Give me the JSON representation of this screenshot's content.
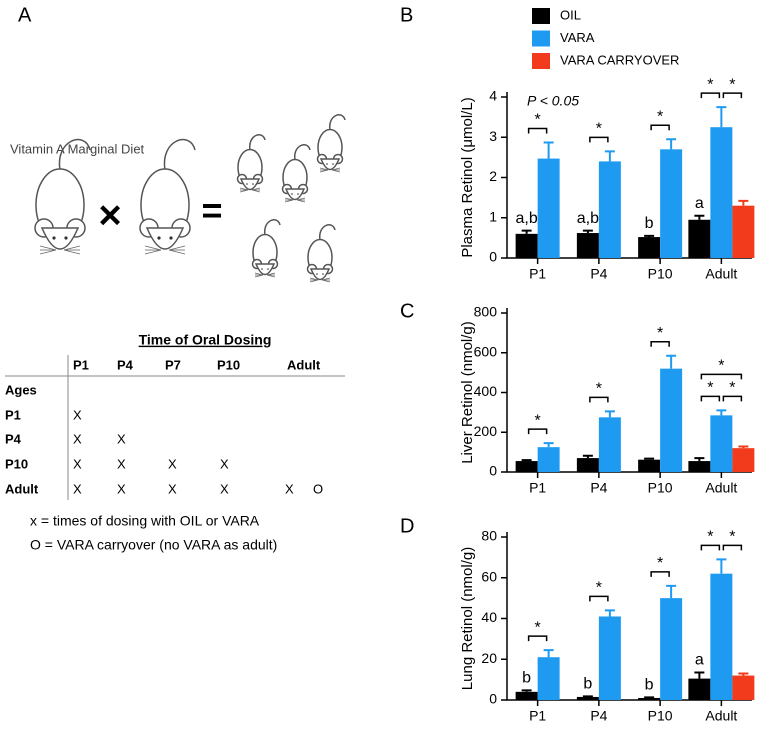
{
  "panel_a": {
    "label": "A",
    "diet": "Vitamin A Marginal Diet",
    "table": {
      "title": "Time of Oral Dosing",
      "columns": [
        "P1",
        "P4",
        "P7",
        "P10",
        "Adult"
      ],
      "row_header": "Ages",
      "rows": [
        {
          "label": "P1",
          "cells": [
            "X"
          ]
        },
        {
          "label": "P4",
          "cells": [
            "X",
            "X"
          ]
        },
        {
          "label": "P10",
          "cells": [
            "X",
            "X",
            "X",
            "X"
          ]
        },
        {
          "label": "Adult",
          "cells": [
            "X",
            "X",
            "X",
            "X",
            "X",
            "O"
          ]
        }
      ]
    },
    "notes": [
      "x = times of dosing with OIL or VARA",
      "O = VARA carryover (no VARA as adult)"
    ]
  },
  "legend": [
    {
      "name": "OIL",
      "color": "#000000"
    },
    {
      "name": "VARA",
      "color": "#1e9bf0"
    },
    {
      "name": "VARA CARRYOVER",
      "color": "#f23a1c"
    }
  ],
  "chart_data": [
    {
      "type": "bar",
      "panel": "B",
      "y_label": "Plasma Retinol (μmol/L)",
      "annotation": "P < 0.05",
      "categories": [
        "P1",
        "P4",
        "P10",
        "Adult"
      ],
      "ylim": [
        0,
        4
      ],
      "yticks": [
        0,
        1,
        2,
        3,
        4
      ],
      "series": [
        {
          "name": "OIL",
          "color": "#000000",
          "values": [
            0.6,
            0.62,
            0.52,
            0.95
          ],
          "errors": [
            0.08,
            0.06,
            0.03,
            0.1
          ],
          "letters": [
            "a,b",
            "a,b",
            "b",
            "a"
          ]
        },
        {
          "name": "VARA",
          "color": "#1e9bf0",
          "values": [
            2.47,
            2.4,
            2.7,
            3.25
          ],
          "errors": [
            0.4,
            0.25,
            0.25,
            0.5
          ]
        },
        {
          "name": "VARA CARRYOVER",
          "color": "#f23a1c",
          "values": [
            null,
            null,
            null,
            1.3
          ],
          "errors": [
            null,
            null,
            null,
            0.12
          ]
        }
      ],
      "significance": [
        {
          "category": 0,
          "series": [
            0,
            1
          ],
          "label": "*"
        },
        {
          "category": 1,
          "series": [
            0,
            1
          ],
          "label": "*"
        },
        {
          "category": 2,
          "series": [
            0,
            1
          ],
          "label": "*"
        },
        {
          "category": 3,
          "series": [
            0,
            1
          ],
          "label": "*"
        },
        {
          "category": 3,
          "series": [
            1,
            2
          ],
          "label": "*"
        }
      ]
    },
    {
      "type": "bar",
      "panel": "C",
      "y_label": "Liver Retinol (nmol/g)",
      "categories": [
        "P1",
        "P4",
        "P10",
        "Adult"
      ],
      "ylim": [
        0,
        800
      ],
      "yticks": [
        0,
        200,
        400,
        600,
        800
      ],
      "series": [
        {
          "name": "OIL",
          "color": "#000000",
          "values": [
            55,
            70,
            62,
            55
          ],
          "errors": [
            5,
            12,
            5,
            15
          ]
        },
        {
          "name": "VARA",
          "color": "#1e9bf0",
          "values": [
            125,
            275,
            520,
            285
          ],
          "errors": [
            20,
            30,
            65,
            25
          ]
        },
        {
          "name": "VARA CARRYOVER",
          "color": "#f23a1c",
          "values": [
            null,
            null,
            null,
            120
          ],
          "errors": [
            null,
            null,
            null,
            8
          ]
        }
      ],
      "significance": [
        {
          "category": 0,
          "series": [
            0,
            1
          ],
          "label": "*"
        },
        {
          "category": 1,
          "series": [
            0,
            1
          ],
          "label": "*"
        },
        {
          "category": 2,
          "series": [
            0,
            1
          ],
          "label": "*"
        },
        {
          "category": 3,
          "series": [
            0,
            1
          ],
          "label": "*"
        },
        {
          "category": 3,
          "series": [
            1,
            2
          ],
          "label": "*"
        },
        {
          "category": 3,
          "series": [
            0,
            2
          ],
          "label": "*"
        }
      ]
    },
    {
      "type": "bar",
      "panel": "D",
      "y_label": "Lung Retinol (nmol/g)",
      "categories": [
        "P1",
        "P4",
        "P10",
        "Adult"
      ],
      "ylim": [
        0,
        80
      ],
      "yticks": [
        0,
        20,
        40,
        60,
        80
      ],
      "series": [
        {
          "name": "OIL",
          "color": "#000000",
          "values": [
            4,
            1.5,
            1,
            10.5
          ],
          "errors": [
            0.7,
            0.3,
            0.3,
            3
          ],
          "letters": [
            "b",
            "b",
            "b",
            "a"
          ]
        },
        {
          "name": "VARA",
          "color": "#1e9bf0",
          "values": [
            21,
            41,
            50,
            62
          ],
          "errors": [
            3.5,
            3,
            6,
            7
          ]
        },
        {
          "name": "VARA CARRYOVER",
          "color": "#f23a1c",
          "values": [
            null,
            null,
            null,
            12
          ],
          "errors": [
            null,
            null,
            null,
            1
          ]
        }
      ],
      "significance": [
        {
          "category": 0,
          "series": [
            0,
            1
          ],
          "label": "*"
        },
        {
          "category": 1,
          "series": [
            0,
            1
          ],
          "label": "*"
        },
        {
          "category": 2,
          "series": [
            0,
            1
          ],
          "label": "*"
        },
        {
          "category": 3,
          "series": [
            0,
            1
          ],
          "label": "*"
        },
        {
          "category": 3,
          "series": [
            1,
            2
          ],
          "label": "*"
        }
      ]
    }
  ]
}
